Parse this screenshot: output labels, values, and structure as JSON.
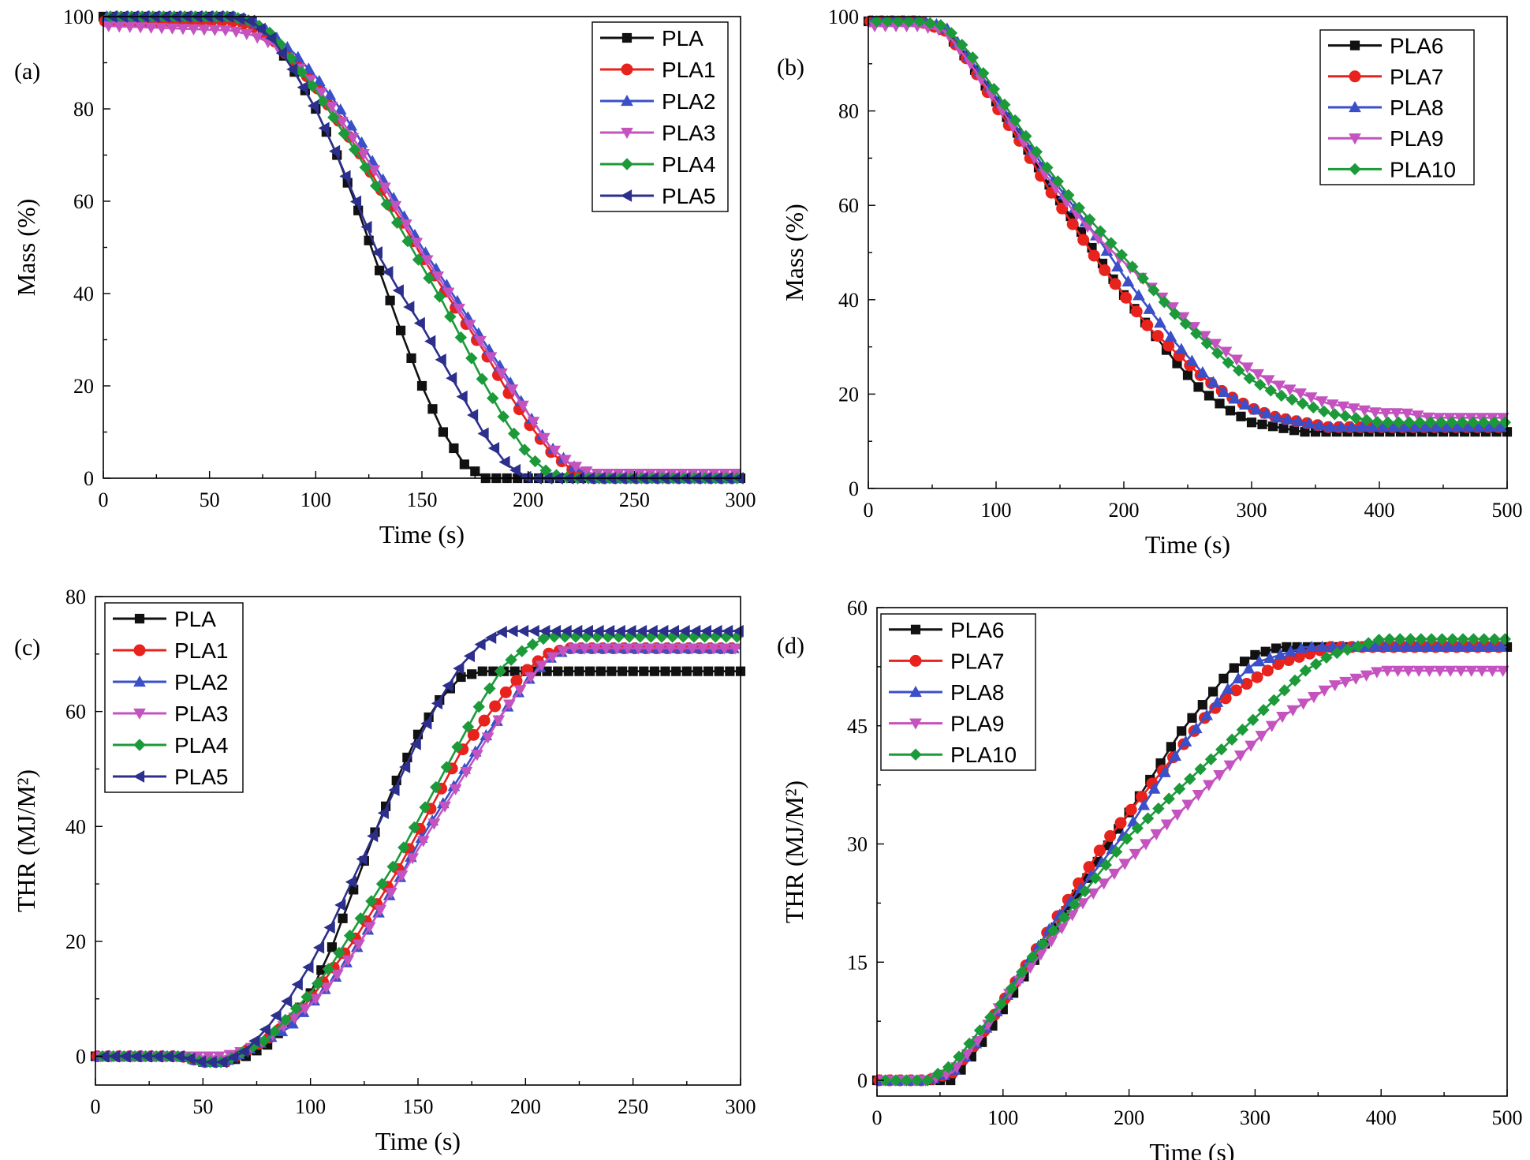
{
  "colors": {
    "PLA": "#111111",
    "PLA1": "#e8221c",
    "PLA2": "#3a4fc8",
    "PLA3": "#c453c0",
    "PLA4": "#1c9a3a",
    "PLA5": "#2c2f8c",
    "PLA6": "#111111",
    "PLA7": "#e8221c",
    "PLA8": "#3a4fc8",
    "PLA9": "#c453c0",
    "PLA10": "#1c9a3a"
  },
  "chart_data": [
    {
      "id": "a",
      "panel_label": "(a)",
      "type": "line",
      "xlabel": "Time (s)",
      "ylabel": "Mass (%)",
      "xlim": [
        0,
        300
      ],
      "ylim": [
        0,
        100
      ],
      "xticks": [
        0,
        50,
        100,
        150,
        200,
        250,
        300
      ],
      "yticks": [
        0,
        20,
        40,
        60,
        80,
        100
      ],
      "legend_position": "top-right",
      "series": [
        {
          "name": "PLA",
          "marker": "square",
          "x": [
            0,
            60,
            70,
            80,
            90,
            100,
            110,
            120,
            130,
            140,
            150,
            160,
            170,
            180,
            300
          ],
          "y": [
            100,
            100,
            99,
            95,
            88,
            80,
            70,
            58,
            45,
            32,
            20,
            10,
            3,
            0,
            0
          ]
        },
        {
          "name": "PLA1",
          "marker": "circle",
          "x": [
            0,
            60,
            70,
            80,
            90,
            100,
            110,
            120,
            130,
            140,
            150,
            160,
            170,
            180,
            190,
            200,
            210,
            220,
            230,
            300
          ],
          "y": [
            99,
            99,
            98,
            95,
            90,
            85,
            78,
            71,
            63,
            56,
            48,
            41,
            34,
            27,
            19,
            12,
            6,
            2,
            0,
            0
          ]
        },
        {
          "name": "PLA2",
          "marker": "triangle-up",
          "x": [
            0,
            60,
            70,
            80,
            90,
            100,
            110,
            120,
            130,
            140,
            150,
            160,
            170,
            180,
            190,
            200,
            210,
            220,
            230,
            300
          ],
          "y": [
            100,
            100,
            99,
            96,
            92,
            87,
            81,
            74,
            66,
            58,
            50,
            43,
            36,
            29,
            22,
            14,
            7,
            3,
            0,
            0
          ]
        },
        {
          "name": "PLA3",
          "marker": "triangle-down",
          "x": [
            0,
            60,
            70,
            80,
            90,
            100,
            110,
            120,
            130,
            140,
            150,
            160,
            170,
            180,
            190,
            200,
            210,
            220,
            230,
            300
          ],
          "y": [
            98,
            97,
            96,
            94,
            90,
            85,
            79,
            72,
            65,
            57,
            49,
            42,
            35,
            28,
            21,
            14,
            7,
            3,
            1,
            1
          ]
        },
        {
          "name": "PLA4",
          "marker": "diamond",
          "x": [
            0,
            60,
            70,
            80,
            90,
            100,
            110,
            120,
            130,
            140,
            150,
            160,
            170,
            180,
            190,
            200,
            210,
            220,
            300
          ],
          "y": [
            100,
            100,
            99,
            96,
            90,
            84,
            77,
            70,
            62,
            54,
            46,
            38,
            29,
            20,
            12,
            5,
            1,
            0,
            0
          ]
        },
        {
          "name": "PLA5",
          "marker": "triangle-left",
          "x": [
            0,
            60,
            70,
            80,
            90,
            100,
            110,
            120,
            130,
            140,
            150,
            160,
            170,
            180,
            190,
            200,
            300
          ],
          "y": [
            100,
            100,
            99,
            95,
            88,
            80,
            70,
            59,
            48,
            40,
            33,
            25,
            17,
            9,
            3,
            0,
            0
          ]
        }
      ]
    },
    {
      "id": "b",
      "panel_label": "(b)",
      "type": "line",
      "xlabel": "Time (s)",
      "ylabel": "Mass (%)",
      "xlim": [
        0,
        500
      ],
      "ylim": [
        0,
        100
      ],
      "xticks": [
        0,
        100,
        200,
        300,
        400,
        500
      ],
      "yticks": [
        0,
        20,
        40,
        60,
        80,
        100
      ],
      "legend_position": "top-right",
      "series": [
        {
          "name": "PLA6",
          "marker": "square",
          "x": [
            0,
            40,
            60,
            80,
            100,
            120,
            140,
            160,
            180,
            200,
            220,
            240,
            260,
            280,
            300,
            320,
            340,
            360,
            400,
            500
          ],
          "y": [
            99,
            99,
            97,
            90,
            82,
            74,
            65,
            57,
            49,
            41,
            34,
            27,
            21,
            17,
            14,
            13,
            12,
            12,
            12,
            12
          ]
        },
        {
          "name": "PLA7",
          "marker": "circle",
          "x": [
            0,
            40,
            60,
            80,
            100,
            120,
            140,
            160,
            180,
            200,
            220,
            240,
            260,
            280,
            300,
            320,
            340,
            360,
            400,
            500
          ],
          "y": [
            99,
            99,
            97,
            90,
            81,
            73,
            64,
            56,
            48,
            41,
            34,
            29,
            24,
            20,
            17,
            15,
            14,
            13,
            13,
            13
          ]
        },
        {
          "name": "PLA8",
          "marker": "triangle-up",
          "x": [
            0,
            40,
            60,
            80,
            100,
            120,
            140,
            160,
            180,
            200,
            220,
            240,
            260,
            280,
            300,
            320,
            340,
            360,
            400,
            500
          ],
          "y": [
            99,
            99,
            98,
            91,
            83,
            75,
            67,
            60,
            53,
            45,
            38,
            31,
            25,
            20,
            17,
            15,
            14,
            13,
            13,
            13
          ]
        },
        {
          "name": "PLA9",
          "marker": "triangle-down",
          "x": [
            0,
            40,
            60,
            80,
            100,
            120,
            140,
            160,
            180,
            200,
            220,
            240,
            260,
            280,
            300,
            320,
            340,
            360,
            380,
            400,
            420,
            440,
            500
          ],
          "y": [
            98,
            98,
            97,
            90,
            82,
            74,
            66,
            59,
            53,
            48,
            43,
            38,
            33,
            29,
            25,
            22,
            20,
            18,
            17,
            16,
            16,
            15,
            15
          ]
        },
        {
          "name": "PLA10",
          "marker": "diamond",
          "x": [
            0,
            40,
            60,
            80,
            100,
            120,
            140,
            160,
            180,
            200,
            220,
            240,
            260,
            280,
            300,
            320,
            340,
            360,
            380,
            400,
            500
          ],
          "y": [
            99,
            99,
            98,
            92,
            84,
            76,
            68,
            61,
            55,
            49,
            43,
            37,
            32,
            27,
            23,
            20,
            18,
            16,
            15,
            14,
            14
          ]
        }
      ]
    },
    {
      "id": "c",
      "panel_label": "(c)",
      "type": "line",
      "xlabel": "Time (s)",
      "ylabel": "THR (MJ/M²)",
      "xlim": [
        0,
        300
      ],
      "ylim": [
        -5,
        80
      ],
      "xticks": [
        0,
        50,
        100,
        150,
        200,
        250,
        300
      ],
      "yticks": [
        0,
        20,
        40,
        60,
        80
      ],
      "legend_position": "top-left",
      "series": [
        {
          "name": "PLA",
          "marker": "square",
          "x": [
            0,
            40,
            50,
            60,
            70,
            80,
            90,
            100,
            110,
            120,
            130,
            140,
            150,
            160,
            170,
            180,
            190,
            300
          ],
          "y": [
            0,
            0,
            -1,
            -1,
            0,
            2,
            6,
            11,
            19,
            29,
            39,
            48,
            56,
            62,
            66,
            67,
            67,
            67
          ]
        },
        {
          "name": "PLA1",
          "marker": "circle",
          "x": [
            0,
            40,
            50,
            60,
            70,
            80,
            90,
            100,
            110,
            120,
            130,
            140,
            150,
            160,
            170,
            180,
            190,
            200,
            210,
            220,
            300
          ],
          "y": [
            0,
            0,
            -1,
            -1,
            1,
            3,
            6,
            10,
            15,
            20,
            26,
            32,
            39,
            46,
            53,
            58,
            63,
            67,
            70,
            71,
            71
          ]
        },
        {
          "name": "PLA2",
          "marker": "triangle-up",
          "x": [
            0,
            40,
            50,
            60,
            70,
            80,
            90,
            100,
            110,
            120,
            130,
            140,
            150,
            160,
            170,
            180,
            190,
            200,
            210,
            220,
            300
          ],
          "y": [
            0,
            0,
            -1,
            -1,
            1,
            3,
            5,
            9,
            13,
            18,
            24,
            30,
            37,
            43,
            49,
            55,
            60,
            65,
            69,
            71,
            71
          ]
        },
        {
          "name": "PLA3",
          "marker": "triangle-down",
          "x": [
            0,
            40,
            50,
            60,
            70,
            80,
            90,
            100,
            110,
            120,
            130,
            140,
            150,
            160,
            170,
            180,
            190,
            200,
            210,
            220,
            300
          ],
          "y": [
            0,
            0,
            0,
            0,
            1,
            3,
            6,
            9,
            13,
            18,
            24,
            30,
            36,
            42,
            48,
            54,
            60,
            65,
            69,
            71,
            71
          ]
        },
        {
          "name": "PLA4",
          "marker": "diamond",
          "x": [
            0,
            40,
            50,
            60,
            70,
            80,
            90,
            100,
            110,
            120,
            130,
            140,
            150,
            160,
            170,
            180,
            190,
            200,
            210,
            300
          ],
          "y": [
            0,
            0,
            -1,
            -1,
            1,
            3,
            7,
            11,
            16,
            22,
            28,
            34,
            41,
            48,
            55,
            62,
            68,
            71,
            73,
            73
          ]
        },
        {
          "name": "PLA5",
          "marker": "triangle-left",
          "x": [
            0,
            40,
            50,
            60,
            70,
            80,
            90,
            100,
            110,
            120,
            130,
            140,
            150,
            160,
            170,
            180,
            190,
            200,
            300
          ],
          "y": [
            0,
            0,
            -1,
            -1,
            1,
            5,
            10,
            16,
            23,
            31,
            39,
            47,
            55,
            62,
            68,
            72,
            74,
            74,
            74
          ]
        }
      ]
    },
    {
      "id": "d",
      "panel_label": "(d)",
      "type": "line",
      "xlabel": "Time (s)",
      "ylabel": "THR (MJ/M²)",
      "xlim": [
        0,
        500
      ],
      "ylim": [
        -2,
        60
      ],
      "xticks": [
        0,
        100,
        200,
        300,
        400,
        500
      ],
      "yticks": [
        0,
        15,
        30,
        45,
        60
      ],
      "legend_position": "top-left",
      "series": [
        {
          "name": "PLA6",
          "marker": "square",
          "x": [
            0,
            40,
            60,
            80,
            100,
            120,
            140,
            160,
            180,
            200,
            220,
            240,
            260,
            280,
            300,
            320,
            340,
            400,
            500
          ],
          "y": [
            0,
            0,
            0,
            4,
            9,
            14,
            19,
            24,
            29,
            34,
            39,
            44,
            48,
            52,
            54,
            55,
            55,
            55,
            55
          ]
        },
        {
          "name": "PLA7",
          "marker": "circle",
          "x": [
            0,
            40,
            60,
            80,
            100,
            120,
            140,
            160,
            180,
            200,
            220,
            240,
            260,
            280,
            300,
            320,
            340,
            360,
            400,
            500
          ],
          "y": [
            0,
            0,
            1,
            5,
            10,
            15,
            20,
            25,
            30,
            34,
            38,
            42,
            46,
            49,
            51,
            53,
            54,
            55,
            55,
            55
          ]
        },
        {
          "name": "PLA8",
          "marker": "triangle-up",
          "x": [
            0,
            40,
            60,
            80,
            100,
            120,
            140,
            160,
            180,
            200,
            220,
            240,
            260,
            280,
            300,
            320,
            340,
            400,
            500
          ],
          "y": [
            0,
            0,
            1,
            5,
            10,
            15,
            20,
            24,
            28,
            32,
            37,
            42,
            46,
            50,
            53,
            54,
            55,
            55,
            55
          ]
        },
        {
          "name": "PLA9",
          "marker": "triangle-down",
          "x": [
            0,
            40,
            60,
            80,
            100,
            120,
            140,
            160,
            180,
            200,
            220,
            240,
            260,
            280,
            300,
            320,
            340,
            360,
            380,
            400,
            420,
            500
          ],
          "y": [
            0,
            0,
            1,
            5,
            10,
            14,
            18,
            22,
            25,
            28,
            31,
            34,
            37,
            40,
            43,
            46,
            48,
            50,
            51,
            52,
            52,
            52
          ]
        },
        {
          "name": "PLA10",
          "marker": "diamond",
          "x": [
            0,
            40,
            60,
            80,
            100,
            120,
            140,
            160,
            180,
            200,
            220,
            240,
            260,
            280,
            300,
            320,
            340,
            360,
            380,
            400,
            500
          ],
          "y": [
            0,
            0,
            2,
            6,
            10,
            15,
            19,
            23,
            27,
            31,
            34,
            37,
            40,
            43,
            46,
            49,
            52,
            54,
            55,
            56,
            56
          ]
        }
      ]
    }
  ]
}
